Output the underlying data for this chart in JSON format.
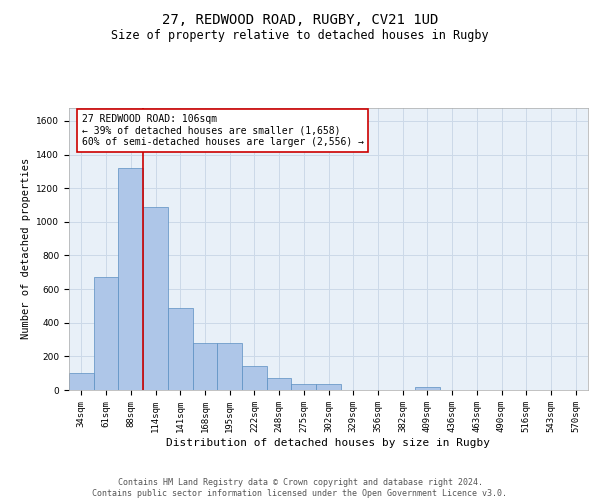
{
  "title_line1": "27, REDWOOD ROAD, RUGBY, CV21 1UD",
  "title_line2": "Size of property relative to detached houses in Rugby",
  "xlabel": "Distribution of detached houses by size in Rugby",
  "ylabel": "Number of detached properties",
  "categories": [
    "34sqm",
    "61sqm",
    "88sqm",
    "114sqm",
    "141sqm",
    "168sqm",
    "195sqm",
    "222sqm",
    "248sqm",
    "275sqm",
    "302sqm",
    "329sqm",
    "356sqm",
    "382sqm",
    "409sqm",
    "436sqm",
    "463sqm",
    "490sqm",
    "516sqm",
    "543sqm",
    "570sqm"
  ],
  "values": [
    100,
    670,
    1320,
    1090,
    490,
    280,
    280,
    140,
    70,
    35,
    35,
    0,
    0,
    0,
    20,
    0,
    0,
    0,
    0,
    0,
    0
  ],
  "bar_color": "#aec6e8",
  "bar_edge_color": "#5a8fc2",
  "vline_x_index": 2.5,
  "vline_color": "#cc0000",
  "annotation_box_text": "27 REDWOOD ROAD: 106sqm\n← 39% of detached houses are smaller (1,658)\n60% of semi-detached houses are larger (2,556) →",
  "annotation_font_size": 7,
  "box_edge_color": "#cc0000",
  "ylim": [
    0,
    1680
  ],
  "yticks": [
    0,
    200,
    400,
    600,
    800,
    1000,
    1200,
    1400,
    1600
  ],
  "grid_color": "#ccd9e8",
  "background_color": "#e8f0f8",
  "footer_text": "Contains HM Land Registry data © Crown copyright and database right 2024.\nContains public sector information licensed under the Open Government Licence v3.0.",
  "title_fontsize": 10,
  "subtitle_fontsize": 8.5,
  "xlabel_fontsize": 8,
  "ylabel_fontsize": 7.5,
  "tick_fontsize": 6.5,
  "footer_fontsize": 6
}
